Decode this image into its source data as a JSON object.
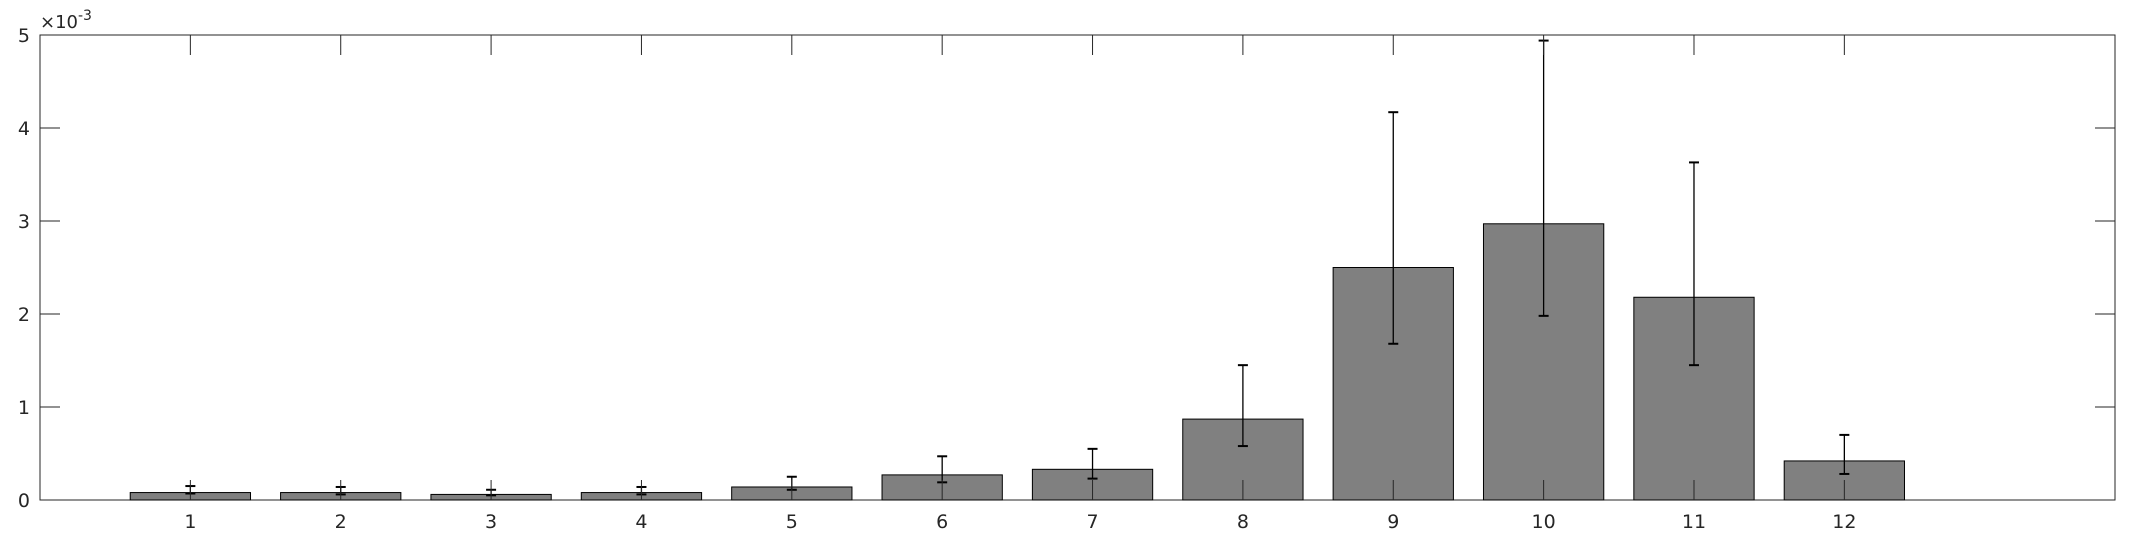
{
  "chart_data": {
    "type": "bar",
    "categories": [
      "1",
      "2",
      "3",
      "4",
      "5",
      "6",
      "7",
      "8",
      "9",
      "10",
      "11",
      "12"
    ],
    "values": [
      8e-05,
      8e-05,
      6e-05,
      8e-05,
      0.00014,
      0.00027,
      0.00033,
      0.00087,
      0.0025,
      0.00297,
      0.00218,
      0.00042
    ],
    "error_low": [
      7e-05,
      6e-05,
      5e-05,
      6e-05,
      0.00011,
      0.00019,
      0.00023,
      0.00058,
      0.00168,
      0.00198,
      0.00145,
      0.00028
    ],
    "error_high": [
      0.00015,
      0.00014,
      0.00011,
      0.00014,
      0.00025,
      0.00047,
      0.00055,
      0.00145,
      0.00417,
      0.00494,
      0.00363,
      0.0007
    ],
    "xlim": [
      0,
      13.8
    ],
    "ylim": [
      0,
      0.005
    ],
    "yticks": [
      "0",
      "1",
      "2",
      "3",
      "4",
      "5"
    ],
    "ytick_values": [
      0,
      0.001,
      0.002,
      0.003,
      0.004,
      0.005
    ],
    "y_multiplier": "×10",
    "y_multiplier_exp": "-3",
    "title": "",
    "xlabel": "",
    "ylabel": "",
    "grid": false,
    "bar_color": "#808080",
    "edge_color": "#000000"
  }
}
